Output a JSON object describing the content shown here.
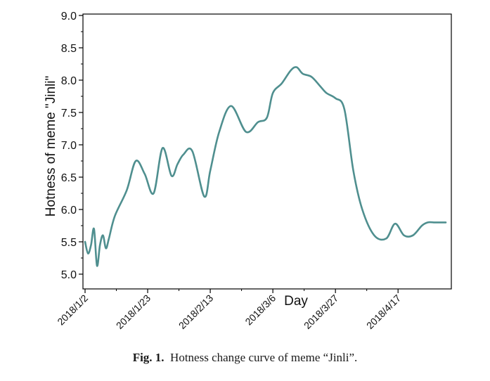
{
  "colors": {
    "line": "#4f8f8f",
    "axis": "#000000",
    "text": "#111111"
  },
  "caption": {
    "label": "Fig. 1.",
    "text": "Hotness change curve of meme “Jinli”."
  },
  "chart_data": {
    "type": "line",
    "title": "",
    "xlabel": "Day",
    "ylabel": "Hotness of meme \"Jinli\"",
    "ylim": [
      5.0,
      9.0
    ],
    "yticks": [
      "5.0",
      "5.5",
      "6.0",
      "6.5",
      "7.0",
      "7.5",
      "8.0",
      "8.5",
      "9.0"
    ],
    "xticks": [
      "2018/1/2",
      "2018/1/23",
      "2018/2/13",
      "2018/3/6",
      "2018/3/27",
      "2018/4/17"
    ],
    "grid": false,
    "legend": "none",
    "series": [
      {
        "x": [
          "2018/1/2",
          "2018/1/3",
          "2018/1/4",
          "2018/1/5",
          "2018/1/6",
          "2018/1/7",
          "2018/1/8",
          "2018/1/9",
          "2018/1/10",
          "2018/1/12",
          "2018/1/16",
          "2018/1/19",
          "2018/1/22",
          "2018/1/25",
          "2018/1/28",
          "2018/1/31",
          "2018/2/2",
          "2018/2/4",
          "2018/2/7",
          "2018/2/11",
          "2018/2/13",
          "2018/2/16",
          "2018/2/20",
          "2018/2/25",
          "2018/3/1",
          "2018/3/4",
          "2018/3/6",
          "2018/3/9",
          "2018/3/12",
          "2018/3/14",
          "2018/3/16",
          "2018/3/19",
          "2018/3/22",
          "2018/3/24",
          "2018/3/27",
          "2018/3/30",
          "2018/4/2",
          "2018/4/5",
          "2018/4/9",
          "2018/4/13",
          "2018/4/16",
          "2018/4/19",
          "2018/4/22",
          "2018/4/25",
          "2018/4/27",
          "2018/4/29",
          "2018/5/1",
          "2018/5/3"
        ],
        "values": [
          5.5,
          5.32,
          5.45,
          5.7,
          5.13,
          5.45,
          5.6,
          5.4,
          5.55,
          5.9,
          6.3,
          6.75,
          6.55,
          6.25,
          6.95,
          6.52,
          6.7,
          6.85,
          6.9,
          6.2,
          6.6,
          7.2,
          7.6,
          7.2,
          7.35,
          7.42,
          7.8,
          7.95,
          8.15,
          8.2,
          8.1,
          8.05,
          7.9,
          7.8,
          7.72,
          7.55,
          6.6,
          6.0,
          5.6,
          5.55,
          5.78,
          5.6,
          5.6,
          5.75,
          5.8,
          5.8,
          5.8,
          5.8
        ]
      }
    ]
  }
}
